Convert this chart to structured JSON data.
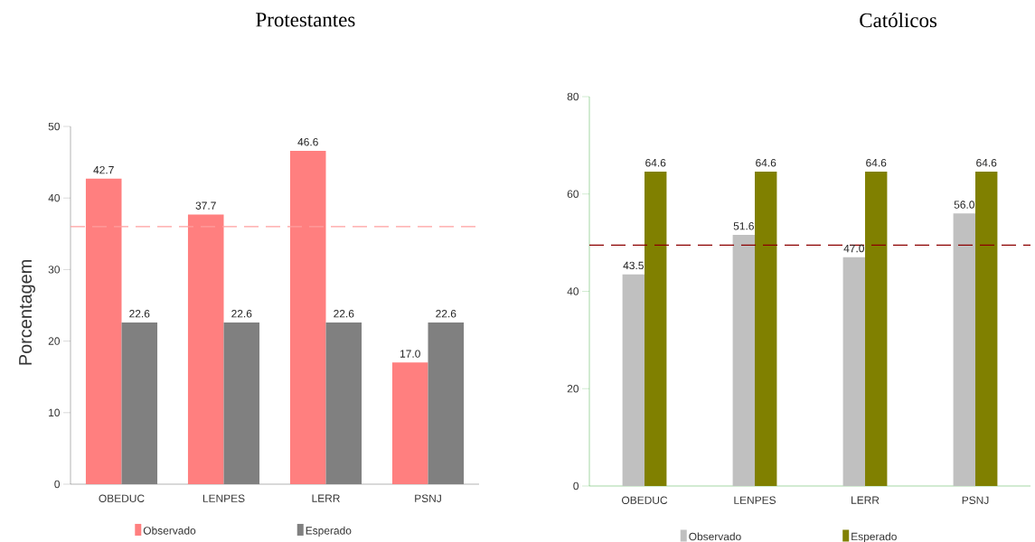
{
  "chart_data": [
    {
      "type": "bar",
      "title": "Protestantes",
      "ylabel": "Porcentagem",
      "categories": [
        "OBEDUC",
        "LENPES",
        "LERR",
        "PSNJ"
      ],
      "series": [
        {
          "name": "Observado",
          "color": "#ff7f7f",
          "values": [
            42.7,
            37.7,
            46.6,
            17.0
          ],
          "value_labels": [
            "42.7",
            "37.7",
            "46.6",
            "17.0"
          ]
        },
        {
          "name": "Esperado",
          "color": "#808080",
          "values": [
            22.6,
            22.6,
            22.6,
            22.6
          ],
          "value_labels": [
            "22.6",
            "22.6",
            "22.6",
            "22.6"
          ]
        }
      ],
      "ylim": [
        0,
        50
      ],
      "yticks": [
        0,
        10,
        20,
        30,
        40,
        50
      ],
      "legend": "bottom",
      "ref_lines": [
        {
          "axis": "y",
          "value": 36,
          "color": "#ff9f9f",
          "line_style": "dashed"
        }
      ]
    },
    {
      "type": "bar",
      "title": "Católicos",
      "categories": [
        "OBEDUC",
        "LENPES",
        "LERR",
        "PSNJ"
      ],
      "series": [
        {
          "name": "Observado",
          "color": "#c0c0c0",
          "values": [
            43.5,
            51.6,
            47.0,
            56.0
          ],
          "value_labels": [
            "43.5",
            "51.6",
            "47.0",
            "56.0"
          ]
        },
        {
          "name": "Esperado",
          "color": "#808000",
          "values": [
            64.6,
            64.6,
            64.6,
            64.6
          ],
          "value_labels": [
            "64.6",
            "64.6",
            "64.6",
            "64.6"
          ]
        }
      ],
      "ylim": [
        0,
        80
      ],
      "yticks": [
        0,
        20,
        40,
        60,
        80
      ],
      "legend": "bottom",
      "ref_lines": [
        {
          "axis": "y",
          "value": 49.5,
          "color": "#8b0000",
          "line_style": "dashed"
        }
      ]
    }
  ]
}
